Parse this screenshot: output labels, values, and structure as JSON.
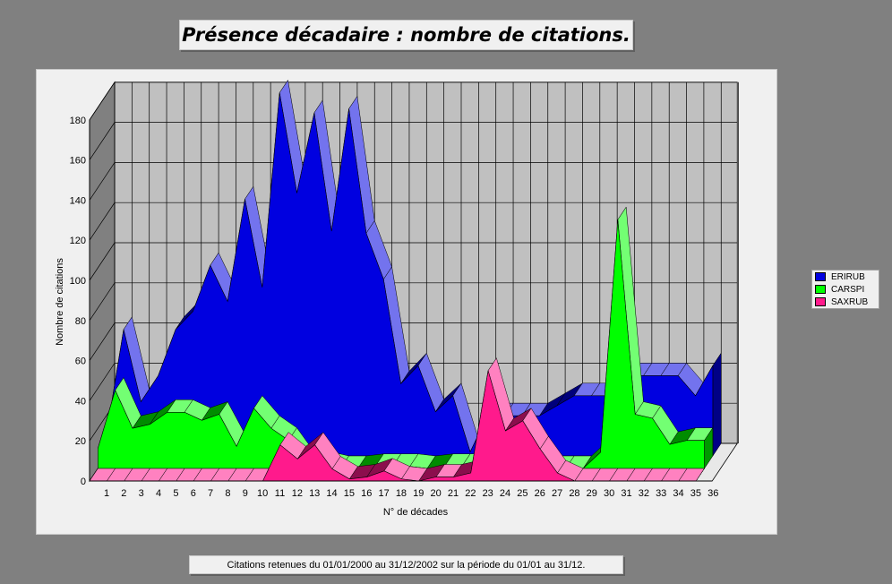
{
  "title": "Présence décadaire :  nombre de citations.",
  "footer": "Citations retenues du 01/01/2000 au 31/12/2002 sur la période du 01/01 au 31/12.",
  "chart_data": {
    "type": "area",
    "title": "Présence décadaire :  nombre de citations.",
    "xlabel": "N° de décades",
    "ylabel": "Nombre de citations",
    "ylim": [
      0,
      180
    ],
    "yticks": [
      0,
      20,
      40,
      60,
      80,
      100,
      120,
      140,
      160,
      180
    ],
    "grid": true,
    "legend_position": "right",
    "categories": [
      "1",
      "2",
      "3",
      "4",
      "5",
      "6",
      "7",
      "8",
      "9",
      "10",
      "11",
      "12",
      "13",
      "14",
      "15",
      "16",
      "17",
      "18",
      "19",
      "20",
      "21",
      "22",
      "23",
      "24",
      "25",
      "26",
      "27",
      "28",
      "29",
      "30",
      "31",
      "32",
      "33",
      "34",
      "35",
      "36"
    ],
    "series": [
      {
        "name": "SAXRUB",
        "color": "#ff1a8c",
        "values": [
          0,
          0,
          0,
          0,
          0,
          0,
          0,
          0,
          0,
          0,
          0,
          18,
          11,
          18,
          6,
          1,
          2,
          5,
          1,
          0,
          2,
          2,
          4,
          55,
          25,
          30,
          16,
          4,
          0,
          0,
          0,
          0,
          0,
          0,
          0,
          0
        ]
      },
      {
        "name": "CARSPI",
        "color": "#00ff00",
        "values": [
          10,
          39,
          20,
          22,
          28,
          28,
          24,
          27,
          11,
          30,
          20,
          14,
          2,
          2,
          0,
          0,
          1,
          1,
          1,
          0,
          1,
          1,
          1,
          0,
          0,
          0,
          0,
          0,
          0,
          8,
          124,
          27,
          25,
          12,
          14,
          14
        ]
      },
      {
        "name": "ERIRUB",
        "color": "#0000e0",
        "values": [
          10,
          63,
          27,
          40,
          63,
          72,
          95,
          77,
          128,
          84,
          181,
          131,
          171,
          112,
          173,
          111,
          88,
          36,
          45,
          22,
          30,
          2,
          20,
          20,
          20,
          20,
          25,
          30,
          30,
          30,
          40,
          40,
          40,
          40,
          30,
          45
        ]
      }
    ]
  },
  "legend": [
    {
      "label": "ERIRUB",
      "color": "#0000e0"
    },
    {
      "label": "CARSPI",
      "color": "#00ff00"
    },
    {
      "label": "SAXRUB",
      "color": "#ff1a8c"
    }
  ]
}
